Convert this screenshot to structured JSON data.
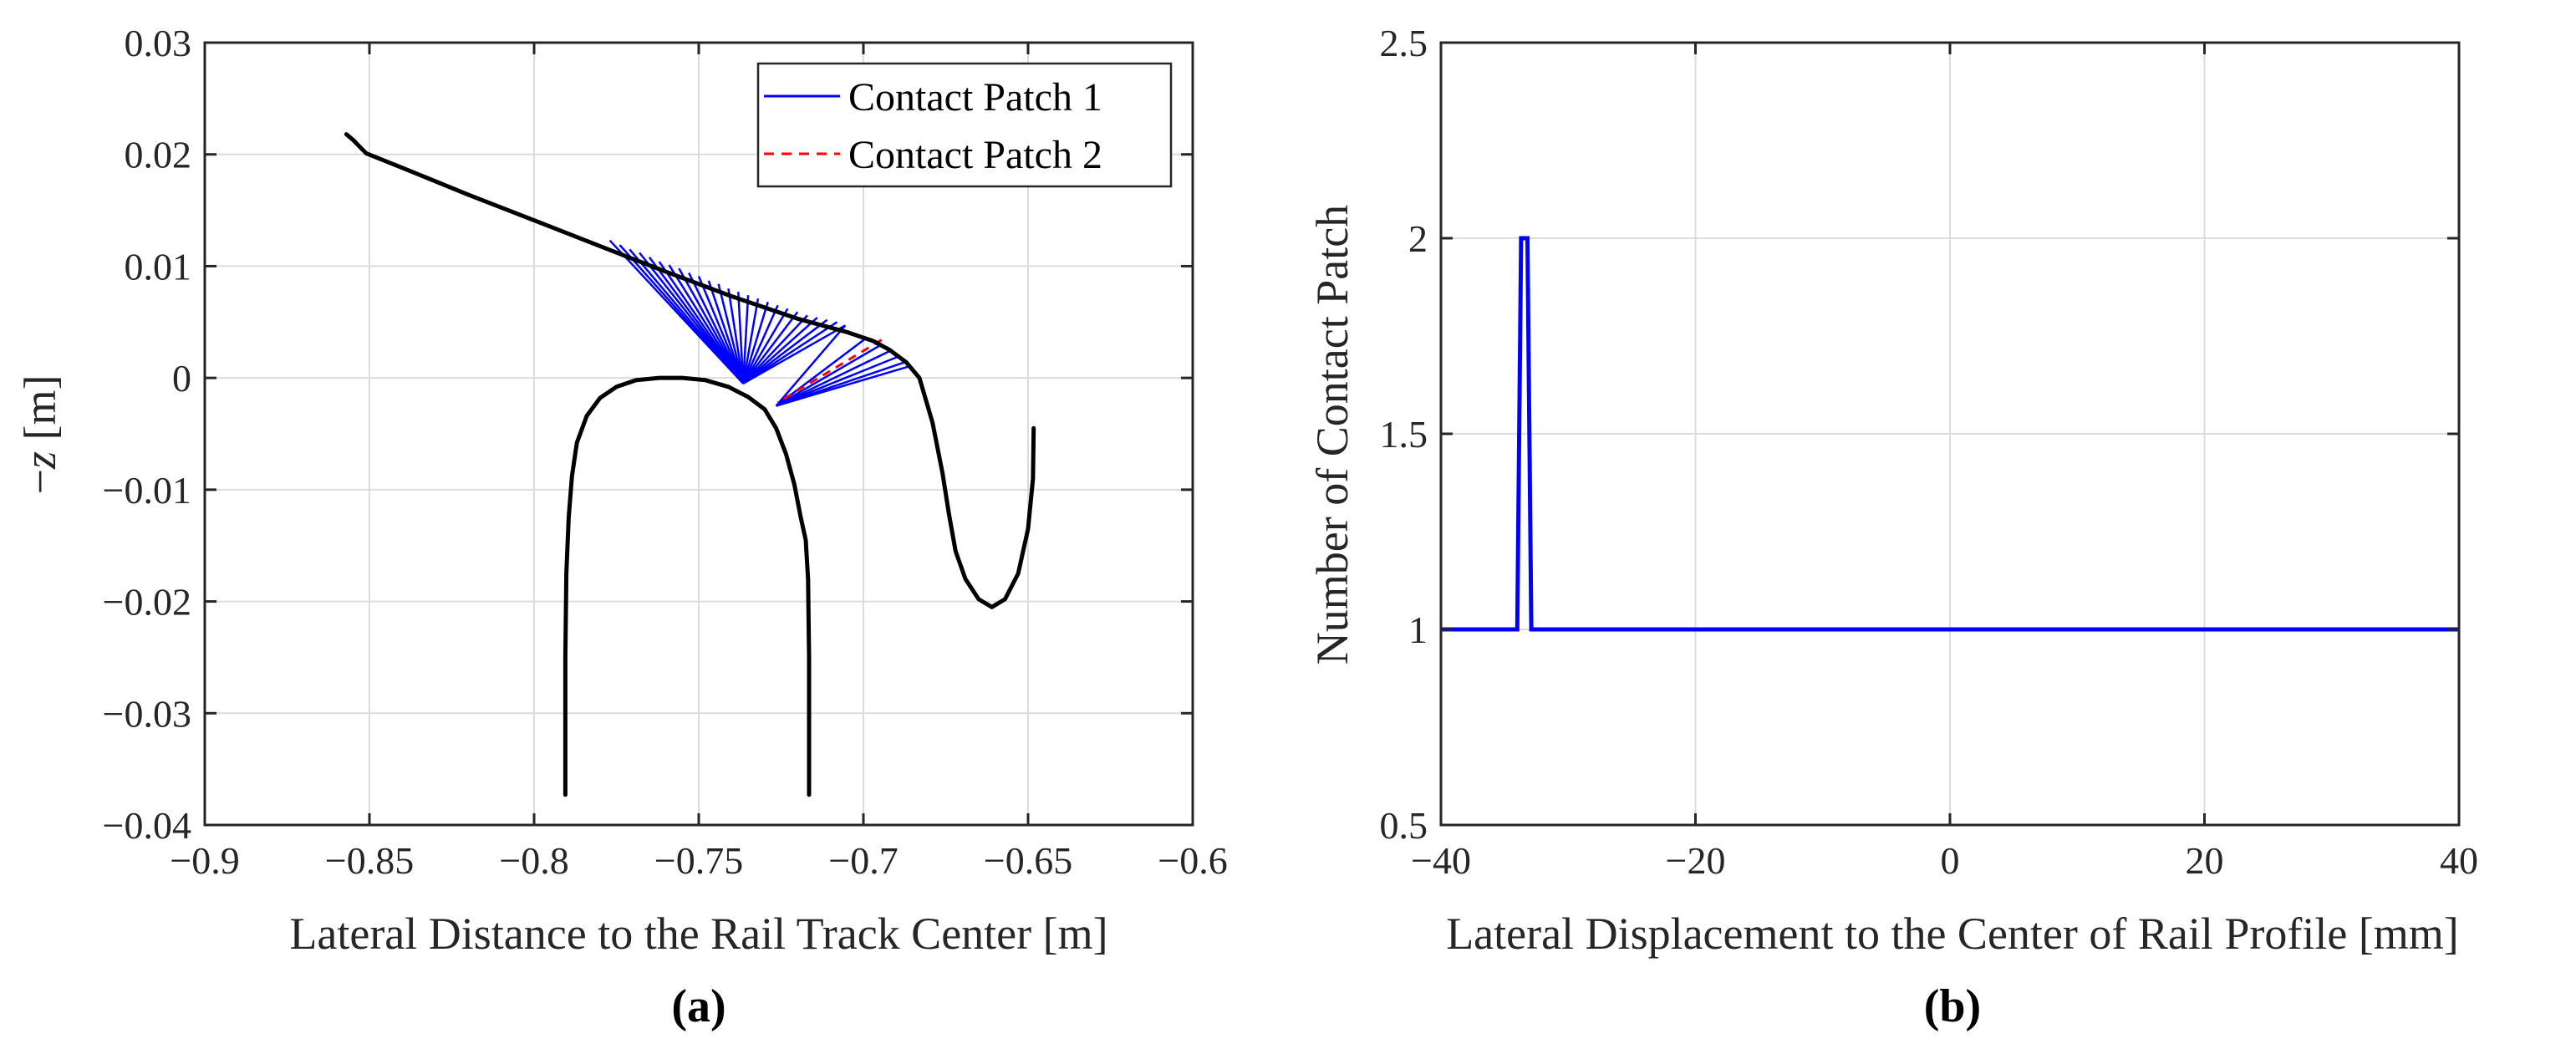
{
  "chart_data": [
    {
      "type": "line",
      "panel_label": "(a)",
      "xlabel": "Lateral Distance to the Rail Track Center [m]",
      "ylabel_prefix": "−",
      "ylabel_var": "z",
      "ylabel_unit": " [m]",
      "xlim": [
        -0.9,
        -0.6
      ],
      "ylim": [
        -0.04,
        0.03
      ],
      "xticks": [
        -0.9,
        -0.85,
        -0.8,
        -0.75,
        -0.7,
        -0.65,
        -0.6
      ],
      "xtick_labels": [
        "−0.9",
        "−0.85",
        "−0.8",
        "−0.75",
        "−0.7",
        "−0.65",
        "−0.6"
      ],
      "yticks": [
        -0.04,
        -0.03,
        -0.02,
        -0.01,
        0,
        0.01,
        0.02,
        0.03
      ],
      "ytick_labels": [
        "−0.04",
        "−0.03",
        "−0.02",
        "−0.01",
        "0",
        "0.01",
        "0.02",
        "0.03"
      ],
      "grid": true,
      "legend_position": "top-right",
      "legend": [
        {
          "name": "Contact Patch 1",
          "color": "#0000ff",
          "style": "solid"
        },
        {
          "name": "Contact Patch 2",
          "color": "#ff0000",
          "style": "dashed"
        }
      ],
      "wheel_profile": {
        "color": "#000000",
        "x": [
          -0.857,
          -0.855,
          -0.853,
          -0.851,
          -0.84,
          -0.82,
          -0.8,
          -0.78,
          -0.76,
          -0.74,
          -0.72,
          -0.705,
          -0.697,
          -0.692,
          -0.687,
          -0.683,
          -0.679,
          -0.676,
          -0.674,
          -0.672,
          -0.669,
          -0.665,
          -0.661,
          -0.657,
          -0.653,
          -0.65,
          -0.6485,
          -0.6483
        ],
        "y": [
          0.0218,
          0.0213,
          0.0207,
          0.0201,
          0.0188,
          0.0164,
          0.0141,
          0.0118,
          0.0095,
          0.0073,
          0.0053,
          0.0041,
          0.0033,
          0.0025,
          0.0014,
          0.0,
          -0.004,
          -0.0085,
          -0.0122,
          -0.0155,
          -0.018,
          -0.0198,
          -0.0205,
          -0.0198,
          -0.0175,
          -0.0135,
          -0.009,
          -0.0045
        ]
      },
      "rail_profile": {
        "color": "#000000",
        "x": [
          -0.7905,
          -0.7905,
          -0.7902,
          -0.7895,
          -0.7885,
          -0.787,
          -0.784,
          -0.78,
          -0.775,
          -0.769,
          -0.762,
          -0.755,
          -0.748,
          -0.741,
          -0.735,
          -0.73,
          -0.7265,
          -0.7235,
          -0.721,
          -0.719,
          -0.7175,
          -0.7168,
          -0.7165,
          -0.7165
        ],
        "y": [
          -0.0373,
          -0.025,
          -0.0175,
          -0.0125,
          -0.0088,
          -0.0058,
          -0.0034,
          -0.0018,
          -0.0008,
          -0.0002,
          0.0,
          0.0,
          -0.0002,
          -0.0008,
          -0.0017,
          -0.0028,
          -0.0045,
          -0.0068,
          -0.0095,
          -0.0125,
          -0.0145,
          -0.018,
          -0.025,
          -0.0373
        ]
      },
      "contact_lines_patch1": [
        {
          "wheel": [
            -0.777,
            0.0123
          ],
          "rail": [
            -0.7365,
            -0.0005
          ]
        },
        {
          "wheel": [
            -0.774,
            0.0119
          ],
          "rail": [
            -0.7365,
            -0.0005
          ]
        },
        {
          "wheel": [
            -0.771,
            0.0115
          ],
          "rail": [
            -0.7365,
            -0.0005
          ]
        },
        {
          "wheel": [
            -0.768,
            0.0112
          ],
          "rail": [
            -0.7365,
            -0.0005
          ]
        },
        {
          "wheel": [
            -0.765,
            0.0108
          ],
          "rail": [
            -0.7365,
            -0.0005
          ]
        },
        {
          "wheel": [
            -0.762,
            0.0104
          ],
          "rail": [
            -0.7365,
            -0.0005
          ]
        },
        {
          "wheel": [
            -0.759,
            0.0101
          ],
          "rail": [
            -0.7365,
            -0.0005
          ]
        },
        {
          "wheel": [
            -0.756,
            0.0098
          ],
          "rail": [
            -0.7365,
            -0.0005
          ]
        },
        {
          "wheel": [
            -0.753,
            0.0094
          ],
          "rail": [
            -0.7365,
            -0.0005
          ]
        },
        {
          "wheel": [
            -0.75,
            0.0091
          ],
          "rail": [
            -0.7365,
            -0.0005
          ]
        },
        {
          "wheel": [
            -0.747,
            0.0087
          ],
          "rail": [
            -0.7365,
            -0.0005
          ]
        },
        {
          "wheel": [
            -0.744,
            0.0084
          ],
          "rail": [
            -0.7365,
            -0.0005
          ]
        },
        {
          "wheel": [
            -0.741,
            0.008
          ],
          "rail": [
            -0.7365,
            -0.0005
          ]
        },
        {
          "wheel": [
            -0.738,
            0.0077
          ],
          "rail": [
            -0.7365,
            -0.0005
          ]
        },
        {
          "wheel": [
            -0.735,
            0.0074
          ],
          "rail": [
            -0.7365,
            -0.0005
          ]
        },
        {
          "wheel": [
            -0.732,
            0.0071
          ],
          "rail": [
            -0.7365,
            -0.0005
          ]
        },
        {
          "wheel": [
            -0.729,
            0.0068
          ],
          "rail": [
            -0.7365,
            -0.0005
          ]
        },
        {
          "wheel": [
            -0.726,
            0.0065
          ],
          "rail": [
            -0.7365,
            -0.0005
          ]
        },
        {
          "wheel": [
            -0.723,
            0.0062
          ],
          "rail": [
            -0.7365,
            -0.0005
          ]
        },
        {
          "wheel": [
            -0.72,
            0.0059
          ],
          "rail": [
            -0.7365,
            -0.0005
          ]
        },
        {
          "wheel": [
            -0.717,
            0.0056
          ],
          "rail": [
            -0.7365,
            -0.0005
          ]
        },
        {
          "wheel": [
            -0.714,
            0.0054
          ],
          "rail": [
            -0.7365,
            -0.0005
          ]
        },
        {
          "wheel": [
            -0.711,
            0.0052
          ],
          "rail": [
            -0.7365,
            -0.0005
          ]
        },
        {
          "wheel": [
            -0.708,
            0.005
          ],
          "rail": [
            -0.7365,
            -0.0005
          ]
        },
        {
          "wheel": [
            -0.7055,
            0.0047
          ],
          "rail": [
            -0.7365,
            -0.0005
          ]
        },
        {
          "wheel": [
            -0.7055,
            0.0047
          ],
          "rail": [
            -0.7265,
            -0.0025
          ]
        },
        {
          "wheel": [
            -0.699,
            0.0036
          ],
          "rail": [
            -0.7265,
            -0.0025
          ]
        },
        {
          "wheel": [
            -0.695,
            0.0029
          ],
          "rail": [
            -0.7265,
            -0.0025
          ]
        },
        {
          "wheel": [
            -0.692,
            0.0024
          ],
          "rail": [
            -0.7265,
            -0.0025
          ]
        },
        {
          "wheel": [
            -0.6895,
            0.0019
          ],
          "rail": [
            -0.7265,
            -0.0025
          ]
        },
        {
          "wheel": [
            -0.6875,
            0.0014
          ],
          "rail": [
            -0.7265,
            -0.0025
          ]
        },
        {
          "wheel": [
            -0.6865,
            0.001
          ],
          "rail": [
            -0.7265,
            -0.0025
          ]
        }
      ],
      "contact_lines_patch2": [
        {
          "wheel": [
            -0.6945,
            0.0034
          ],
          "rail": [
            -0.726,
            -0.0022
          ]
        }
      ]
    },
    {
      "type": "line",
      "panel_label": "(b)",
      "xlabel": "Lateral Displacement to the Center of Rail Profile [mm]",
      "ylabel": "Number of Contact Patch",
      "xlim": [
        -40,
        40
      ],
      "ylim": [
        0.5,
        2.5
      ],
      "xticks": [
        -40,
        -20,
        0,
        20,
        40
      ],
      "xtick_labels": [
        "−40",
        "−20",
        "0",
        "20",
        "40"
      ],
      "yticks": [
        0.5,
        1,
        1.5,
        2,
        2.5
      ],
      "ytick_labels": [
        "0.5",
        "1",
        "1.5",
        "2",
        "2.5"
      ],
      "grid": true,
      "series": [
        {
          "name": "Number of Contact Patch",
          "color": "#0000ff",
          "x": [
            -40,
            -34.0,
            -33.7,
            -33.2,
            -32.9,
            40
          ],
          "y": [
            1,
            1,
            2,
            2,
            1,
            1
          ]
        }
      ]
    }
  ]
}
